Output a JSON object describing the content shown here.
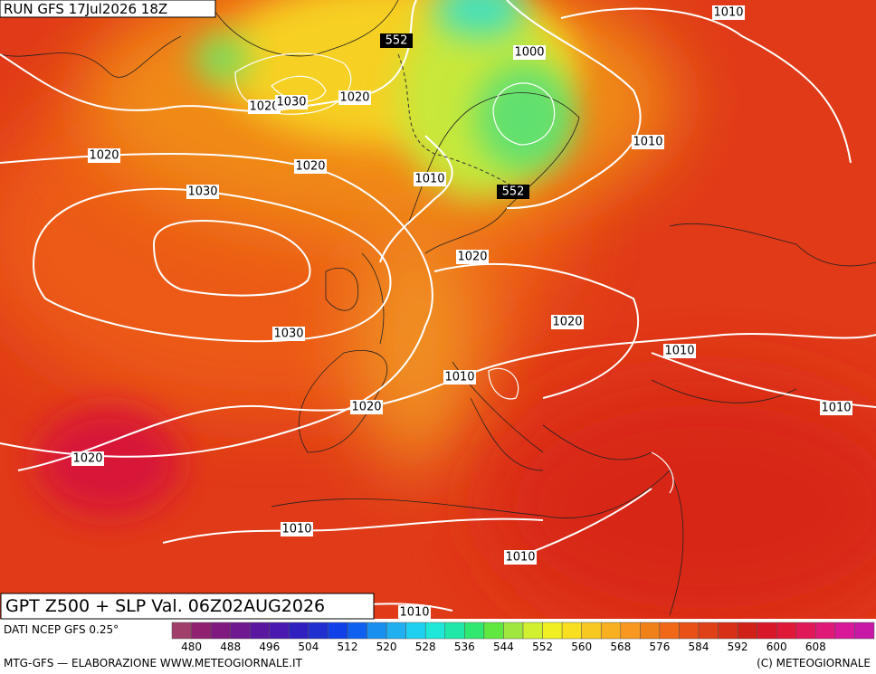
{
  "header": {
    "run": "RUN GFS 17Jul2026 18Z"
  },
  "map": {
    "contour_labels": [
      "1010",
      "552",
      "1000",
      "1020",
      "1030",
      "1020",
      "1010",
      "1020",
      "1020",
      "1010",
      "552",
      "1030",
      "1020",
      "1020",
      "1030",
      "1010",
      "1010",
      "1020",
      "1010",
      "1020",
      "1010",
      "1010",
      "1010"
    ]
  },
  "footer": {
    "title": "GPT Z500 + SLP Val. 06Z02AUG2026",
    "source": "DATI NCEP GFS 0.25°",
    "credit": "MTG-GFS — ELABORAZIONE WWW.METEOGIORNALE.IT",
    "copyright": "(C) METEOGIORNALE"
  },
  "colorbar": {
    "labels": [
      "480",
      "488",
      "496",
      "504",
      "512",
      "520",
      "528",
      "536",
      "544",
      "552",
      "560",
      "568",
      "576",
      "584",
      "592",
      "600",
      "608"
    ],
    "colors": [
      "#a0406a",
      "#902070",
      "#801a80",
      "#701890",
      "#5a18a0",
      "#4a1ab0",
      "#3020c0",
      "#2030d0",
      "#1040e8",
      "#1060f0",
      "#1890f0",
      "#20b0f0",
      "#20d0f0",
      "#20e8d8",
      "#20e8a8",
      "#30e870",
      "#60e840",
      "#a0e840",
      "#d0f030",
      "#f0f020",
      "#f8e020",
      "#f8c820",
      "#f8b020",
      "#f89820",
      "#f08018",
      "#f06818",
      "#e85018",
      "#e04018",
      "#d83018",
      "#d02018",
      "#d81828",
      "#e01838",
      "#e01858",
      "#e01878",
      "#d81898",
      "#c818a8"
    ]
  }
}
